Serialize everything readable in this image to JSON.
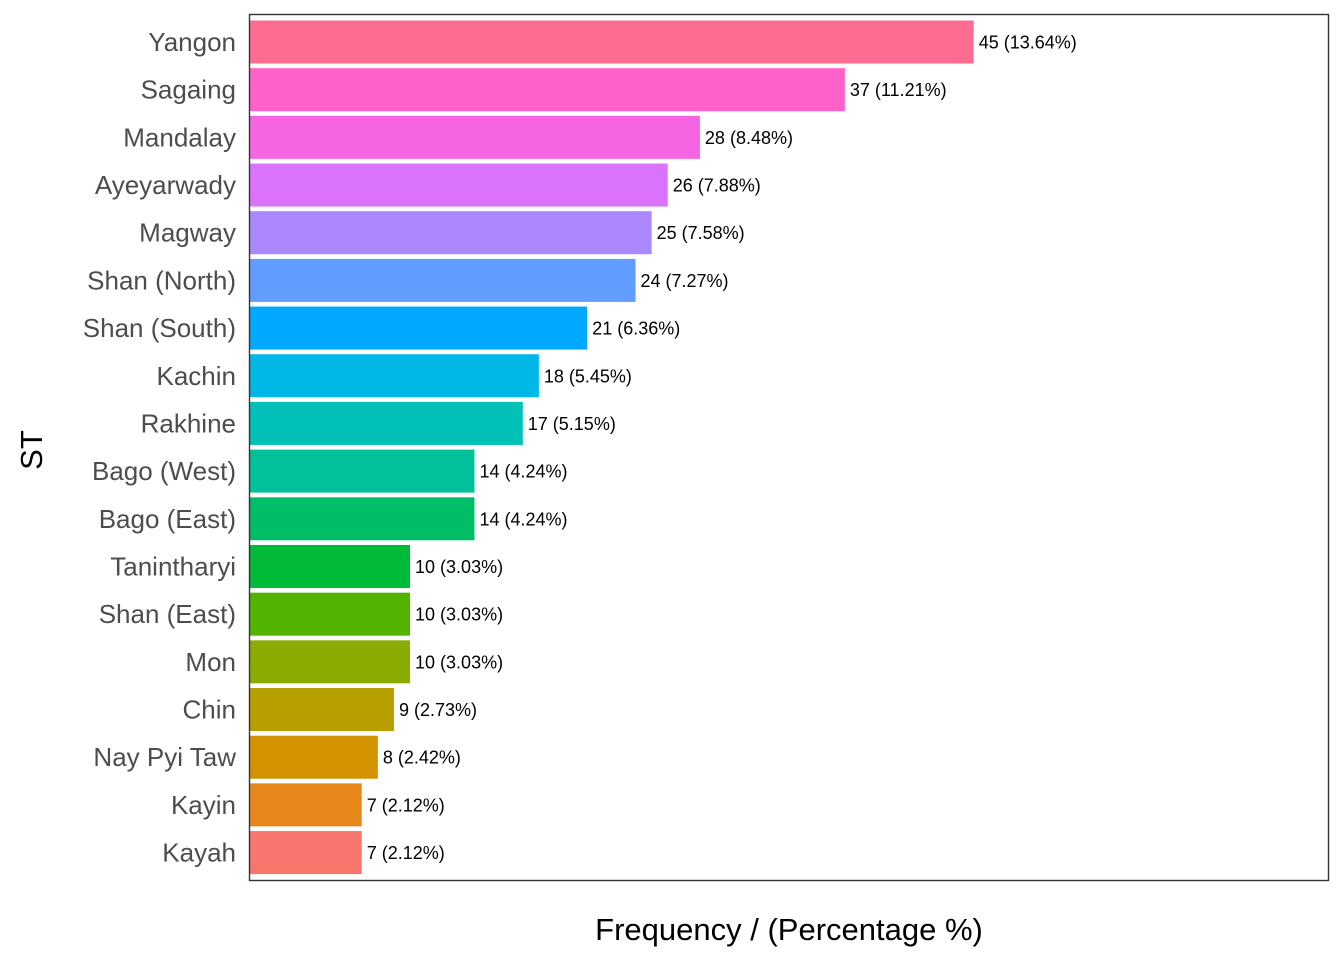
{
  "chart_data": {
    "type": "bar",
    "orientation": "horizontal",
    "xlabel": "Frequency / (Percentage %)",
    "ylabel": "ST",
    "xlim": [
      0,
      67
    ],
    "grid": false,
    "legend": "none",
    "categories": [
      "Yangon",
      "Sagaing",
      "Mandalay",
      "Ayeyarwady",
      "Magway",
      "Shan (North)",
      "Shan (South)",
      "Kachin",
      "Rakhine",
      "Bago (West)",
      "Bago (East)",
      "Tanintharyi",
      "Shan (East)",
      "Mon",
      "Chin",
      "Nay Pyi Taw",
      "Kayin",
      "Kayah"
    ],
    "values": [
      45,
      37,
      28,
      26,
      25,
      24,
      21,
      18,
      17,
      14,
      14,
      10,
      10,
      10,
      9,
      8,
      7,
      7
    ],
    "data_labels": [
      "45 (13.64%)",
      "37 (11.21%)",
      "28 (8.48%)",
      "26 (7.88%)",
      "25 (7.58%)",
      "24 (7.27%)",
      "21 (6.36%)",
      "18 (5.45%)",
      "17 (5.15%)",
      "14 (4.24%)",
      "14 (4.24%)",
      "10 (3.03%)",
      "10 (3.03%)",
      "10 (3.03%)",
      "9 (2.73%)",
      "8 (2.42%)",
      "7 (2.12%)",
      "7 (2.12%)"
    ],
    "colors": [
      "#FF6C91",
      "#FF61C9",
      "#F564E3",
      "#DB72FB",
      "#AC88FF",
      "#619CFF",
      "#00A9FF",
      "#00B8E7",
      "#00C0B8",
      "#00C19A",
      "#00BE67",
      "#00BA38",
      "#53B400",
      "#8AAB00",
      "#B79F00",
      "#D39200",
      "#E7861B",
      "#F8766D"
    ]
  }
}
